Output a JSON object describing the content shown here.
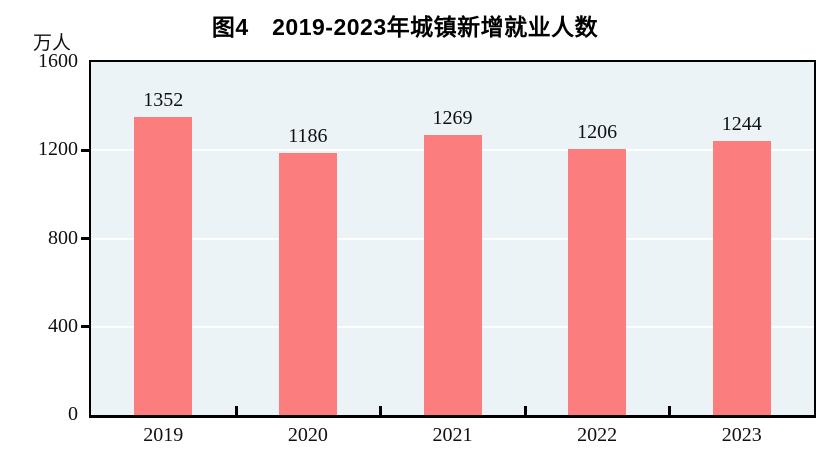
{
  "chart_data": {
    "type": "bar",
    "title": "图4　2019-2023年城镇新增就业人数",
    "unit_label": "万人",
    "categories": [
      "2019",
      "2020",
      "2021",
      "2022",
      "2023"
    ],
    "values": [
      1352,
      1186,
      1269,
      1206,
      1244
    ],
    "y_ticks": [
      0,
      400,
      800,
      1200,
      1600
    ],
    "ylim": [
      0,
      1600
    ],
    "value_labels_shown": true,
    "grid": true,
    "legend": "none",
    "colors": {
      "bar": "#fb7d7d",
      "plot_background": "#ebf3f7",
      "gridline": "#ffffff",
      "axis": "#000000",
      "text": "#111111"
    }
  }
}
